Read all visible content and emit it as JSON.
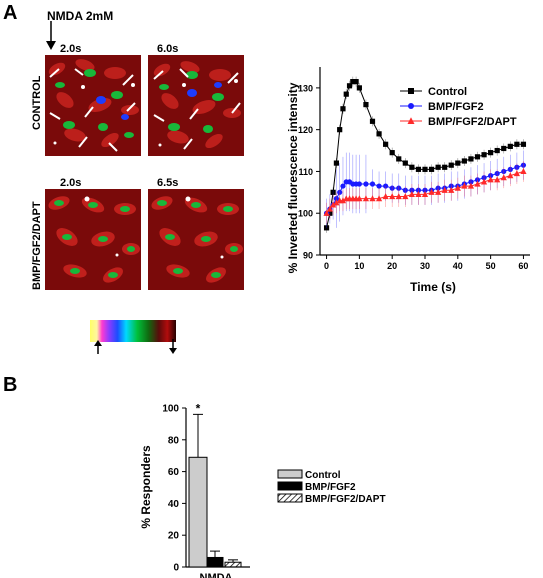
{
  "panel_labels": {
    "a": "A",
    "b": "B"
  },
  "stimulus": "NMDA 2mM",
  "row_labels": {
    "control": "CONTROL",
    "treated": "BMP/FGF2/DAPT"
  },
  "timestamps": {
    "control_first": "2.0s",
    "control_second": "6.0s",
    "treated_first": "2.0s",
    "treated_second": "6.5s"
  },
  "colors": {
    "control": "#000000",
    "bmp_fgf2": "#1a1aff",
    "bmp_fgf2_dapt": "#ff2a2a",
    "bar_control": "#cccccc",
    "bar_bmp": "#000000"
  },
  "chart_data": [
    {
      "type": "line",
      "xlabel": "Time (s)",
      "ylabel": "% Inverted fluorescence intensity",
      "xlim": [
        -2,
        62
      ],
      "ylim": [
        90,
        135
      ],
      "xticks": [
        0,
        10,
        20,
        30,
        40,
        50,
        60
      ],
      "yticks": [
        90,
        100,
        110,
        120,
        130
      ],
      "legend_position": "top-right",
      "series": [
        {
          "name": "Control",
          "marker": "square",
          "x": [
            0,
            1,
            2,
            3,
            4,
            5,
            6,
            7,
            8,
            9,
            10,
            12,
            14,
            16,
            18,
            20,
            22,
            24,
            26,
            28,
            30,
            32,
            34,
            36,
            38,
            40,
            42,
            44,
            46,
            48,
            50,
            52,
            54,
            56,
            58,
            60
          ],
          "y": [
            96.5,
            100,
            105,
            112,
            120,
            125,
            128.5,
            130.5,
            131.5,
            131.5,
            130,
            126,
            122,
            119,
            116.5,
            114.5,
            113,
            112,
            111,
            110.5,
            110.5,
            110.5,
            111,
            111,
            111.5,
            112,
            112.5,
            113,
            113.5,
            114,
            114.5,
            115,
            115.5,
            116,
            116.5,
            116.5
          ]
        },
        {
          "name": "BMP/FGF2",
          "marker": "circle",
          "x": [
            0,
            1,
            2,
            3,
            4,
            5,
            6,
            7,
            8,
            9,
            10,
            12,
            14,
            16,
            18,
            20,
            22,
            24,
            26,
            28,
            30,
            32,
            34,
            36,
            38,
            40,
            42,
            44,
            46,
            48,
            50,
            52,
            54,
            56,
            58,
            60
          ],
          "y": [
            100,
            101,
            102,
            103.5,
            105,
            106.5,
            107.5,
            107.5,
            107,
            107,
            107,
            107,
            107,
            106.5,
            106.5,
            106,
            106,
            105.5,
            105.5,
            105.5,
            105.5,
            105.5,
            106,
            106,
            106.5,
            106.5,
            107,
            107.5,
            108,
            108.5,
            109,
            109.5,
            110,
            110.5,
            111,
            111.5
          ]
        },
        {
          "name": "BMP/FGF2/DAPT",
          "marker": "triangle",
          "x": [
            0,
            1,
            2,
            3,
            4,
            5,
            6,
            7,
            8,
            9,
            10,
            12,
            14,
            16,
            18,
            20,
            22,
            24,
            26,
            28,
            30,
            32,
            34,
            36,
            38,
            40,
            42,
            44,
            46,
            48,
            50,
            52,
            54,
            56,
            58,
            60
          ],
          "y": [
            100,
            101,
            102,
            102.5,
            103,
            103,
            103.5,
            103.5,
            103.5,
            103.5,
            103.5,
            103.5,
            103.5,
            103.5,
            104,
            104,
            104,
            104,
            104.5,
            104.5,
            104.5,
            105,
            105,
            105.5,
            105.5,
            106,
            106.5,
            106.5,
            107,
            107.5,
            108,
            108,
            108.5,
            109,
            109.5,
            110
          ]
        }
      ]
    },
    {
      "type": "bar",
      "ylabel": "% Responders",
      "ylim": [
        0,
        100
      ],
      "yticks": [
        0,
        20,
        40,
        60,
        80,
        100
      ],
      "category": "NMDA",
      "annotation": "*",
      "legend_position": "right",
      "series": [
        {
          "name": "Control",
          "value": 69,
          "error": 27,
          "fill": "light-gray"
        },
        {
          "name": "BMP/FGF2",
          "value": 6,
          "error": 4,
          "fill": "black"
        },
        {
          "name": "BMP/FGF2/DAPT",
          "value": 3,
          "error": 1.5,
          "fill": "hatched"
        }
      ]
    }
  ]
}
